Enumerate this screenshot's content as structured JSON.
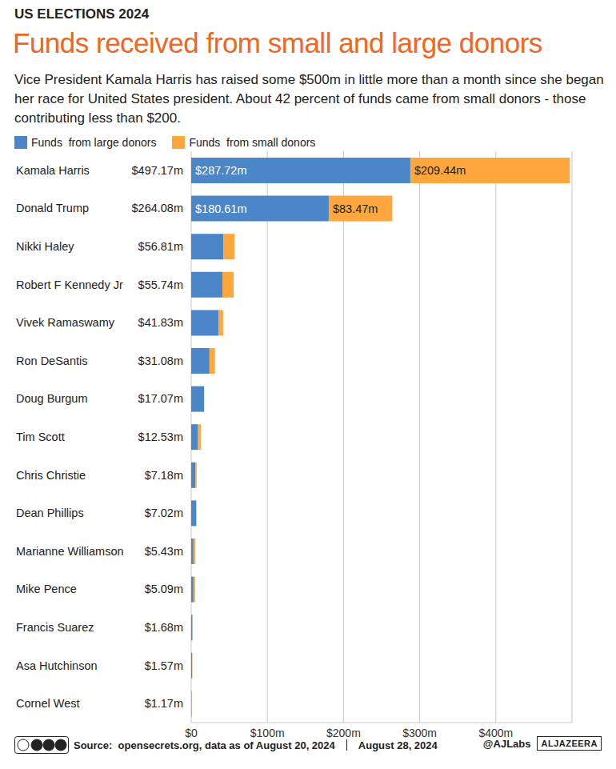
{
  "chart_data": {
    "type": "bar",
    "orientation": "horizontal",
    "stacked": true,
    "grid": true,
    "legend": "top-left",
    "data_labels": true,
    "kicker": "US ELECTIONS 2024",
    "title": "Funds received from small and large donors",
    "subtitle": "Vice President Kamala Harris has raised some $500m in little more than a month since she began her race for United States president. About 42 percent of funds came from small donors - those contributing less than $200.",
    "source": "Source:  opensecrets.org, data as of August 20, 2024",
    "date": "August 28, 2024",
    "credit": "@AJLabs",
    "brand": "ALJAZEERA",
    "categories": [
      "Kamala Harris",
      "Donald Trump",
      "Nikki Haley",
      "Robert F Kennedy Jr",
      "Vivek Ramaswamy",
      "Ron DeSantis",
      "Doug Burgum",
      "Tim Scott",
      "Chris Christie",
      "Dean Phillips",
      "Marianne Williamson",
      "Mike Pence",
      "Francis Suarez",
      "Asa Hutchinson",
      "Cornel West"
    ],
    "totals": [
      497.17,
      264.08,
      56.81,
      55.74,
      41.83,
      31.08,
      17.07,
      12.53,
      7.18,
      7.02,
      5.43,
      5.09,
      1.68,
      1.57,
      1.17
    ],
    "total_labels": [
      "$497.17m",
      "$264.08m",
      "$56.81m",
      "$55.74m",
      "$41.83m",
      "$31.08m",
      "$17.07m",
      "$12.53m",
      "$7.18m",
      "$7.02m",
      "$5.43m",
      "$5.09m",
      "$1.68m",
      "$1.57m",
      "$1.17m"
    ],
    "series": [
      {
        "name": "Funds  from large donors",
        "color": "#4a86c8",
        "values": [
          287.72,
          180.61,
          42.5,
          41.0,
          36.0,
          24.0,
          16.8,
          8.5,
          5.5,
          6.6,
          3.0,
          3.0,
          1.6,
          1.2,
          0.5
        ],
        "value_labels": [
          "$287.72m",
          "$180.61m",
          null,
          null,
          null,
          null,
          null,
          null,
          null,
          null,
          null,
          null,
          null,
          null,
          null
        ]
      },
      {
        "name": "Funds  from small donors",
        "color": "#ffa63c",
        "values": [
          209.44,
          83.47,
          14.31,
          14.74,
          5.83,
          7.08,
          0.27,
          4.03,
          1.68,
          0.42,
          2.43,
          2.09,
          0.08,
          0.37,
          0.67
        ],
        "value_labels": [
          "$209.44m",
          "$83.47m",
          null,
          null,
          null,
          null,
          null,
          null,
          null,
          null,
          null,
          null,
          null,
          null,
          null
        ]
      }
    ],
    "xlim": [
      0,
      500
    ],
    "xticks": [
      {
        "value": 0,
        "label": "$0"
      },
      {
        "value": 100,
        "label": "$100m"
      },
      {
        "value": 200,
        "label": "$200m"
      },
      {
        "value": 300,
        "label": "$300m"
      },
      {
        "value": 400,
        "label": "$400m"
      }
    ]
  }
}
